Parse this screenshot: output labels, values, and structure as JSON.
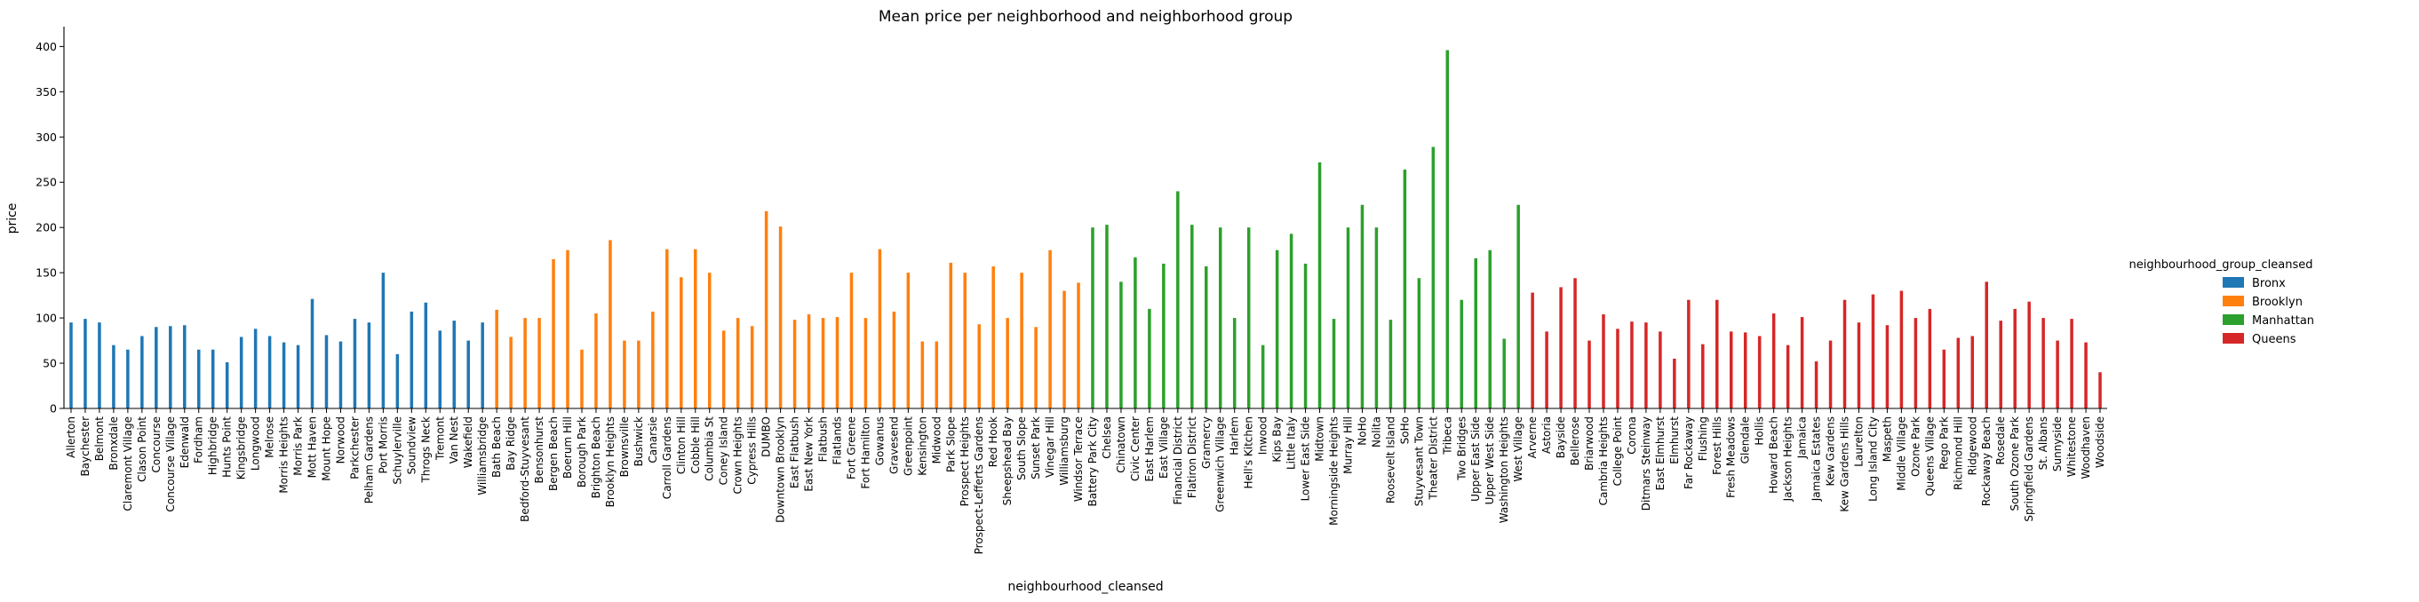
{
  "chart_data": {
    "type": "bar",
    "title": "Mean price per neighborhood and neighborhood group",
    "xlabel": "neighbourhood_cleansed",
    "ylabel": "price",
    "ylim": [
      0,
      420
    ],
    "yticks": [
      0,
      50,
      100,
      150,
      200,
      250,
      300,
      350,
      400
    ],
    "grid": false,
    "legend": {
      "title": "neighbourhood_group_cleansed",
      "placement": "right",
      "entries": [
        {
          "name": "Bronx",
          "color": "#1f77b4"
        },
        {
          "name": "Brooklyn",
          "color": "#ff7f0e"
        },
        {
          "name": "Manhattan",
          "color": "#2ca02c"
        },
        {
          "name": "Queens",
          "color": "#d62728"
        }
      ]
    },
    "series": [
      {
        "name": "Bronx",
        "color": "#1f77b4",
        "points": [
          {
            "x": "Allerton",
            "y": 95
          },
          {
            "x": "Baychester",
            "y": 99
          },
          {
            "x": "Belmont",
            "y": 95
          },
          {
            "x": "Bronxdale",
            "y": 70
          },
          {
            "x": "Claremont Village",
            "y": 65
          },
          {
            "x": "Clason Point",
            "y": 80
          },
          {
            "x": "Concourse",
            "y": 90
          },
          {
            "x": "Concourse Village",
            "y": 91
          },
          {
            "x": "Edenwald",
            "y": 92
          },
          {
            "x": "Fordham",
            "y": 65
          },
          {
            "x": "Highbridge",
            "y": 65
          },
          {
            "x": "Hunts Point",
            "y": 51
          },
          {
            "x": "Kingsbridge",
            "y": 79
          },
          {
            "x": "Longwood",
            "y": 88
          },
          {
            "x": "Melrose",
            "y": 80
          },
          {
            "x": "Morris Heights",
            "y": 73
          },
          {
            "x": "Morris Park",
            "y": 70
          },
          {
            "x": "Mott Haven",
            "y": 121
          },
          {
            "x": "Mount Hope",
            "y": 81
          },
          {
            "x": "Norwood",
            "y": 74
          },
          {
            "x": "Parkchester",
            "y": 99
          },
          {
            "x": "Pelham Gardens",
            "y": 95
          },
          {
            "x": "Port Morris",
            "y": 150
          },
          {
            "x": "Schuylerville",
            "y": 60
          },
          {
            "x": "Soundview",
            "y": 107
          },
          {
            "x": "Throgs Neck",
            "y": 117
          },
          {
            "x": "Tremont",
            "y": 86
          },
          {
            "x": "Van Nest",
            "y": 97
          },
          {
            "x": "Wakefield",
            "y": 75
          },
          {
            "x": "Williamsbridge",
            "y": 95
          }
        ]
      },
      {
        "name": "Brooklyn",
        "color": "#ff7f0e",
        "points": [
          {
            "x": "Bath Beach",
            "y": 109
          },
          {
            "x": "Bay Ridge",
            "y": 79
          },
          {
            "x": "Bedford-Stuyvesant",
            "y": 100
          },
          {
            "x": "Bensonhurst",
            "y": 100
          },
          {
            "x": "Bergen Beach",
            "y": 165
          },
          {
            "x": "Boerum Hill",
            "y": 175
          },
          {
            "x": "Borough Park",
            "y": 65
          },
          {
            "x": "Brighton Beach",
            "y": 105
          },
          {
            "x": "Brooklyn Heights",
            "y": 186
          },
          {
            "x": "Brownsville",
            "y": 75
          },
          {
            "x": "Bushwick",
            "y": 75
          },
          {
            "x": "Canarsie",
            "y": 107
          },
          {
            "x": "Carroll Gardens",
            "y": 176
          },
          {
            "x": "Clinton Hill",
            "y": 145
          },
          {
            "x": "Cobble Hill",
            "y": 176
          },
          {
            "x": "Columbia St",
            "y": 150
          },
          {
            "x": "Coney Island",
            "y": 86
          },
          {
            "x": "Crown Heights",
            "y": 100
          },
          {
            "x": "Cypress Hills",
            "y": 91
          },
          {
            "x": "DUMBO",
            "y": 218
          },
          {
            "x": "Downtown Brooklyn",
            "y": 201
          },
          {
            "x": "East Flatbush",
            "y": 98
          },
          {
            "x": "East New York",
            "y": 104
          },
          {
            "x": "Flatbush",
            "y": 100
          },
          {
            "x": "Flatlands",
            "y": 101
          },
          {
            "x": "Fort Greene",
            "y": 150
          },
          {
            "x": "Fort Hamilton",
            "y": 100
          },
          {
            "x": "Gowanus",
            "y": 176
          },
          {
            "x": "Gravesend",
            "y": 107
          },
          {
            "x": "Greenpoint",
            "y": 150
          },
          {
            "x": "Kensington",
            "y": 74
          },
          {
            "x": "Midwood",
            "y": 74
          },
          {
            "x": "Park Slope",
            "y": 161
          },
          {
            "x": "Prospect Heights",
            "y": 150
          },
          {
            "x": "Prospect-Lefferts Gardens",
            "y": 93
          },
          {
            "x": "Red Hook",
            "y": 157
          },
          {
            "x": "Sheepshead Bay",
            "y": 100
          },
          {
            "x": "South Slope",
            "y": 150
          },
          {
            "x": "Sunset Park",
            "y": 90
          },
          {
            "x": "Vinegar Hill",
            "y": 175
          },
          {
            "x": "Williamsburg",
            "y": 130
          },
          {
            "x": "Windsor Terrace",
            "y": 139
          }
        ]
      },
      {
        "name": "Manhattan",
        "color": "#2ca02c",
        "points": [
          {
            "x": "Battery Park City",
            "y": 200
          },
          {
            "x": "Chelsea",
            "y": 203
          },
          {
            "x": "Chinatown",
            "y": 140
          },
          {
            "x": "Civic Center",
            "y": 167
          },
          {
            "x": "East Harlem",
            "y": 110
          },
          {
            "x": "East Village",
            "y": 160
          },
          {
            "x": "Financial District",
            "y": 240
          },
          {
            "x": "Flatiron District",
            "y": 203
          },
          {
            "x": "Gramercy",
            "y": 157
          },
          {
            "x": "Greenwich Village",
            "y": 200
          },
          {
            "x": "Harlem",
            "y": 100
          },
          {
            "x": "Hell's Kitchen",
            "y": 200
          },
          {
            "x": "Inwood",
            "y": 70
          },
          {
            "x": "Kips Bay",
            "y": 175
          },
          {
            "x": "Little Italy",
            "y": 193
          },
          {
            "x": "Lower East Side",
            "y": 160
          },
          {
            "x": "Midtown",
            "y": 272
          },
          {
            "x": "Morningside Heights",
            "y": 99
          },
          {
            "x": "Murray Hill",
            "y": 200
          },
          {
            "x": "NoHo",
            "y": 225
          },
          {
            "x": "Nolita",
            "y": 200
          },
          {
            "x": "Roosevelt Island",
            "y": 98
          },
          {
            "x": "SoHo",
            "y": 264
          },
          {
            "x": "Stuyvesant Town",
            "y": 144
          },
          {
            "x": "Theater District",
            "y": 289
          },
          {
            "x": "Tribeca",
            "y": 396
          },
          {
            "x": "Two Bridges",
            "y": 120
          },
          {
            "x": "Upper East Side",
            "y": 166
          },
          {
            "x": "Upper West Side",
            "y": 175
          },
          {
            "x": "Washington Heights",
            "y": 77
          },
          {
            "x": "West Village",
            "y": 225
          }
        ]
      },
      {
        "name": "Queens",
        "color": "#d62728",
        "points": [
          {
            "x": "Arverne",
            "y": 128
          },
          {
            "x": "Astoria",
            "y": 85
          },
          {
            "x": "Bayside",
            "y": 134
          },
          {
            "x": "Bellerose",
            "y": 144
          },
          {
            "x": "Briarwood",
            "y": 75
          },
          {
            "x": "Cambria Heights",
            "y": 104
          },
          {
            "x": "College Point",
            "y": 88
          },
          {
            "x": "Corona",
            "y": 96
          },
          {
            "x": "Ditmars Steinway",
            "y": 95
          },
          {
            "x": "East Elmhurst",
            "y": 85
          },
          {
            "x": "Elmhurst",
            "y": 55
          },
          {
            "x": "Far Rockaway",
            "y": 120
          },
          {
            "x": "Flushing",
            "y": 71
          },
          {
            "x": "Forest Hills",
            "y": 120
          },
          {
            "x": "Fresh Meadows",
            "y": 85
          },
          {
            "x": "Glendale",
            "y": 84
          },
          {
            "x": "Hollis",
            "y": 80
          },
          {
            "x": "Howard Beach",
            "y": 105
          },
          {
            "x": "Jackson Heights",
            "y": 70
          },
          {
            "x": "Jamaica",
            "y": 101
          },
          {
            "x": "Jamaica Estates",
            "y": 52
          },
          {
            "x": "Kew Gardens",
            "y": 75
          },
          {
            "x": "Kew Gardens Hills",
            "y": 120
          },
          {
            "x": "Laurelton",
            "y": 95
          },
          {
            "x": "Long Island City",
            "y": 126
          },
          {
            "x": "Maspeth",
            "y": 92
          },
          {
            "x": "Middle Village",
            "y": 130
          },
          {
            "x": "Ozone Park",
            "y": 100
          },
          {
            "x": "Queens Village",
            "y": 110
          },
          {
            "x": "Rego Park",
            "y": 65
          },
          {
            "x": "Richmond Hill",
            "y": 78
          },
          {
            "x": "Ridgewood",
            "y": 80
          },
          {
            "x": "Rockaway Beach",
            "y": 140
          },
          {
            "x": "Rosedale",
            "y": 97
          },
          {
            "x": "South Ozone Park",
            "y": 110
          },
          {
            "x": "Springfield Gardens",
            "y": 118
          },
          {
            "x": "St. Albans",
            "y": 100
          },
          {
            "x": "Sunnyside",
            "y": 75
          },
          {
            "x": "Whitestone",
            "y": 99
          },
          {
            "x": "Woodhaven",
            "y": 73
          },
          {
            "x": "Woodside",
            "y": 40
          }
        ]
      }
    ]
  }
}
